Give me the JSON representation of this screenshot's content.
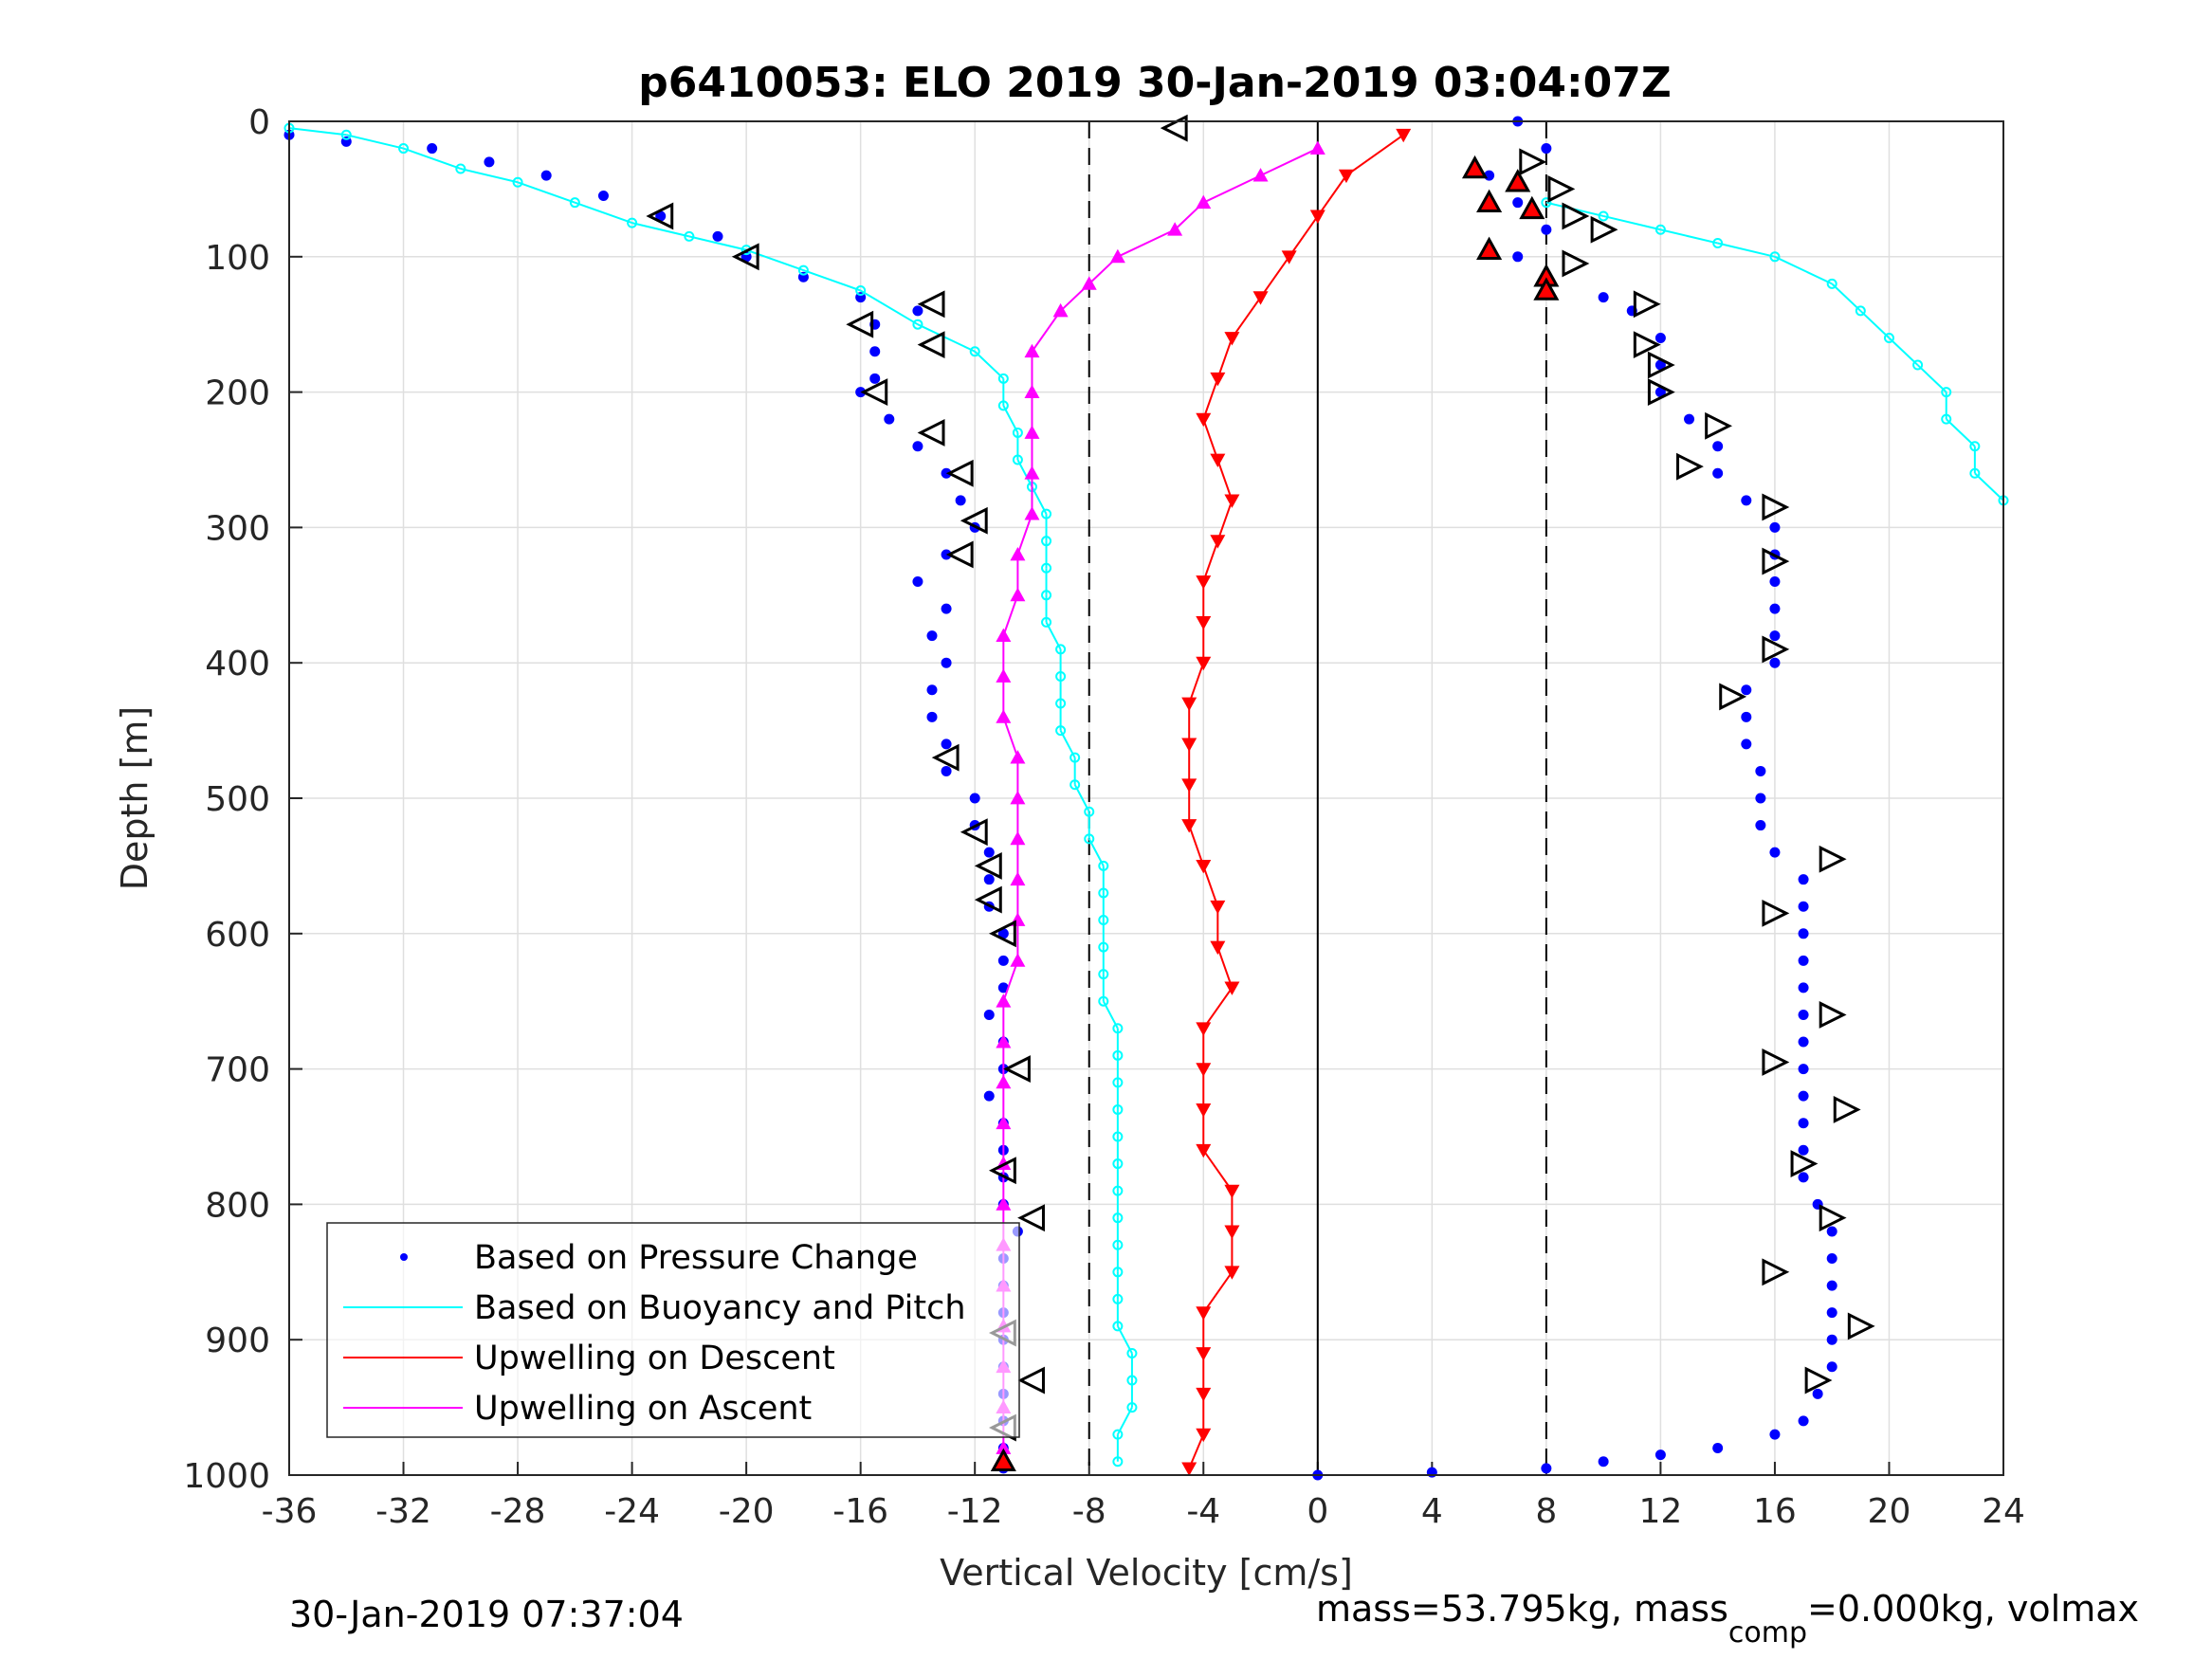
{
  "chart_data": {
    "type": "scatter",
    "title": "p6410053: ELO 2019 30-Jan-2019 03:04:07Z",
    "xlabel": "Vertical Velocity [cm/s]",
    "ylabel": "Depth [m]",
    "xlim": [
      -36,
      24
    ],
    "ylim": [
      0,
      1000
    ],
    "y_reversed": true,
    "grid": true,
    "xticks": [
      "-36",
      "-32",
      "-28",
      "-24",
      "-20",
      "-16",
      "-12",
      "-8",
      "-4",
      "0",
      "4",
      "8",
      "12",
      "16",
      "20",
      "24"
    ],
    "yticks": [
      "0",
      "100",
      "200",
      "300",
      "400",
      "500",
      "600",
      "700",
      "800",
      "900",
      "1000"
    ],
    "reference_lines": [
      {
        "x": -8,
        "style": "dashed"
      },
      {
        "x": 0,
        "style": "solid"
      },
      {
        "x": 8,
        "style": "dashed"
      }
    ],
    "legend_position": "lower-left",
    "series": [
      {
        "name": "Based on Pressure Change",
        "color": "#0000ff",
        "marker": "dot",
        "points": [
          [
            -36,
            10
          ],
          [
            -34,
            15
          ],
          [
            -31,
            20
          ],
          [
            -29,
            30
          ],
          [
            -27,
            40
          ],
          [
            -25,
            55
          ],
          [
            -23,
            70
          ],
          [
            -21,
            85
          ],
          [
            -20,
            100
          ],
          [
            -18,
            115
          ],
          [
            -16,
            130
          ],
          [
            -14,
            140
          ],
          [
            -15.5,
            150
          ],
          [
            -15.5,
            170
          ],
          [
            -15.5,
            190
          ],
          [
            -16,
            200
          ],
          [
            -15,
            220
          ],
          [
            -14,
            240
          ],
          [
            -13,
            260
          ],
          [
            -12.5,
            280
          ],
          [
            -12,
            300
          ],
          [
            -13,
            320
          ],
          [
            -14,
            340
          ],
          [
            -13,
            360
          ],
          [
            -13.5,
            380
          ],
          [
            -13,
            400
          ],
          [
            -13.5,
            420
          ],
          [
            -13.5,
            440
          ],
          [
            -13,
            460
          ],
          [
            -13,
            480
          ],
          [
            -12,
            500
          ],
          [
            -12,
            520
          ],
          [
            -11.5,
            540
          ],
          [
            -11.5,
            560
          ],
          [
            -11.5,
            580
          ],
          [
            -11,
            600
          ],
          [
            -11,
            620
          ],
          [
            -11,
            640
          ],
          [
            -11.5,
            660
          ],
          [
            -11,
            680
          ],
          [
            -11,
            700
          ],
          [
            -11.5,
            720
          ],
          [
            -11,
            740
          ],
          [
            -11,
            760
          ],
          [
            -11,
            780
          ],
          [
            -11,
            800
          ],
          [
            -10.5,
            820
          ],
          [
            -11,
            840
          ],
          [
            -11,
            860
          ],
          [
            -11,
            880
          ],
          [
            -11,
            900
          ],
          [
            -11,
            920
          ],
          [
            -11,
            940
          ],
          [
            -11,
            960
          ],
          [
            -11,
            980
          ],
          [
            -11,
            995
          ],
          [
            7,
            0
          ],
          [
            8,
            20
          ],
          [
            6,
            40
          ],
          [
            7,
            60
          ],
          [
            8,
            80
          ],
          [
            7,
            100
          ],
          [
            8,
            120
          ],
          [
            10,
            130
          ],
          [
            11,
            140
          ],
          [
            12,
            160
          ],
          [
            12,
            180
          ],
          [
            12,
            200
          ],
          [
            13,
            220
          ],
          [
            14,
            240
          ],
          [
            14,
            260
          ],
          [
            15,
            280
          ],
          [
            16,
            300
          ],
          [
            16,
            320
          ],
          [
            16,
            340
          ],
          [
            16,
            360
          ],
          [
            16,
            380
          ],
          [
            16,
            400
          ],
          [
            15,
            420
          ],
          [
            15,
            440
          ],
          [
            15,
            460
          ],
          [
            15.5,
            480
          ],
          [
            15.5,
            500
          ],
          [
            15.5,
            520
          ],
          [
            16,
            540
          ],
          [
            17,
            560
          ],
          [
            17,
            580
          ],
          [
            17,
            600
          ],
          [
            17,
            620
          ],
          [
            17,
            640
          ],
          [
            17,
            660
          ],
          [
            17,
            680
          ],
          [
            17,
            700
          ],
          [
            17,
            720
          ],
          [
            17,
            740
          ],
          [
            17,
            760
          ],
          [
            17,
            780
          ],
          [
            17.5,
            800
          ],
          [
            18,
            820
          ],
          [
            18,
            840
          ],
          [
            18,
            860
          ],
          [
            18,
            880
          ],
          [
            18,
            900
          ],
          [
            18,
            920
          ],
          [
            17.5,
            940
          ],
          [
            17,
            960
          ],
          [
            16,
            970
          ],
          [
            14,
            980
          ],
          [
            12,
            985
          ],
          [
            10,
            990
          ],
          [
            8,
            995
          ],
          [
            4,
            998
          ],
          [
            0,
            1000
          ]
        ]
      },
      {
        "name": "Based on Buoyancy and Pitch",
        "color": "#00ffff",
        "marker": "circle-line",
        "points": [
          [
            -36,
            5
          ],
          [
            -34,
            10
          ],
          [
            -32,
            20
          ],
          [
            -30,
            35
          ],
          [
            -28,
            45
          ],
          [
            -26,
            60
          ],
          [
            -24,
            75
          ],
          [
            -22,
            85
          ],
          [
            -20,
            95
          ],
          [
            -18,
            110
          ],
          [
            -16,
            125
          ],
          [
            -14,
            150
          ],
          [
            -12,
            170
          ],
          [
            -11,
            190
          ],
          [
            -11,
            210
          ],
          [
            -10.5,
            230
          ],
          [
            -10.5,
            250
          ],
          [
            -10,
            270
          ],
          [
            -9.5,
            290
          ],
          [
            -9.5,
            310
          ],
          [
            -9.5,
            330
          ],
          [
            -9.5,
            350
          ],
          [
            -9.5,
            370
          ],
          [
            -9,
            390
          ],
          [
            -9,
            410
          ],
          [
            -9,
            430
          ],
          [
            -9,
            450
          ],
          [
            -8.5,
            470
          ],
          [
            -8.5,
            490
          ],
          [
            -8,
            510
          ],
          [
            -8,
            530
          ],
          [
            -7.5,
            550
          ],
          [
            -7.5,
            570
          ],
          [
            -7.5,
            590
          ],
          [
            -7.5,
            610
          ],
          [
            -7.5,
            630
          ],
          [
            -7.5,
            650
          ],
          [
            -7,
            670
          ],
          [
            -7,
            690
          ],
          [
            -7,
            710
          ],
          [
            -7,
            730
          ],
          [
            -7,
            750
          ],
          [
            -7,
            770
          ],
          [
            -7,
            790
          ],
          [
            -7,
            810
          ],
          [
            -7,
            830
          ],
          [
            -7,
            850
          ],
          [
            -7,
            870
          ],
          [
            -7,
            890
          ],
          [
            -6.5,
            910
          ],
          [
            -6.5,
            930
          ],
          [
            -6.5,
            950
          ],
          [
            -7,
            970
          ],
          [
            -7,
            990
          ],
          [
            8,
            60
          ],
          [
            10,
            70
          ],
          [
            12,
            80
          ],
          [
            14,
            90
          ],
          [
            16,
            100
          ],
          [
            18,
            120
          ],
          [
            19,
            140
          ],
          [
            20,
            160
          ],
          [
            21,
            180
          ],
          [
            22,
            200
          ],
          [
            22,
            220
          ],
          [
            23,
            240
          ],
          [
            23,
            260
          ],
          [
            24,
            280
          ]
        ]
      },
      {
        "name": "Upwelling on Descent",
        "color": "#ff0000",
        "marker": "triangle-down",
        "points": [
          [
            3,
            10
          ],
          [
            1,
            40
          ],
          [
            0,
            70
          ],
          [
            -1,
            100
          ],
          [
            -2,
            130
          ],
          [
            -3,
            160
          ],
          [
            -3.5,
            190
          ],
          [
            -4,
            220
          ],
          [
            -3.5,
            250
          ],
          [
            -3,
            280
          ],
          [
            -3.5,
            310
          ],
          [
            -4,
            340
          ],
          [
            -4,
            370
          ],
          [
            -4,
            400
          ],
          [
            -4.5,
            430
          ],
          [
            -4.5,
            460
          ],
          [
            -4.5,
            490
          ],
          [
            -4.5,
            520
          ],
          [
            -4,
            550
          ],
          [
            -3.5,
            580
          ],
          [
            -3.5,
            610
          ],
          [
            -3,
            640
          ],
          [
            -4,
            670
          ],
          [
            -4,
            700
          ],
          [
            -4,
            730
          ],
          [
            -4,
            760
          ],
          [
            -3,
            790
          ],
          [
            -3,
            820
          ],
          [
            -3,
            850
          ],
          [
            -4,
            880
          ],
          [
            -4,
            910
          ],
          [
            -4,
            940
          ],
          [
            -4,
            970
          ],
          [
            -4.5,
            995
          ]
        ]
      },
      {
        "name": "Upwelling on Ascent",
        "color": "#ff00ff",
        "marker": "triangle-up",
        "points": [
          [
            0,
            20
          ],
          [
            -2,
            40
          ],
          [
            -4,
            60
          ],
          [
            -5,
            80
          ],
          [
            -7,
            100
          ],
          [
            -8,
            120
          ],
          [
            -9,
            140
          ],
          [
            -10,
            170
          ],
          [
            -10,
            200
          ],
          [
            -10,
            230
          ],
          [
            -10,
            260
          ],
          [
            -10,
            290
          ],
          [
            -10.5,
            320
          ],
          [
            -10.5,
            350
          ],
          [
            -11,
            380
          ],
          [
            -11,
            410
          ],
          [
            -11,
            440
          ],
          [
            -10.5,
            470
          ],
          [
            -10.5,
            500
          ],
          [
            -10.5,
            530
          ],
          [
            -10.5,
            560
          ],
          [
            -10.5,
            590
          ],
          [
            -10.5,
            620
          ],
          [
            -11,
            650
          ],
          [
            -11,
            680
          ],
          [
            -11,
            710
          ],
          [
            -11,
            740
          ],
          [
            -11,
            770
          ],
          [
            -11,
            800
          ],
          [
            -11,
            830
          ],
          [
            -11,
            860
          ],
          [
            -11,
            890
          ],
          [
            -11,
            920
          ],
          [
            -11,
            950
          ],
          [
            -11,
            980
          ]
        ]
      }
    ],
    "open_triangle_markers": [
      [
        -23,
        70
      ],
      [
        -20,
        100
      ],
      [
        -16,
        150
      ],
      [
        -13.5,
        135
      ],
      [
        -13.5,
        165
      ],
      [
        -15.5,
        200
      ],
      [
        -13.5,
        230
      ],
      [
        -12.5,
        260
      ],
      [
        -12,
        295
      ],
      [
        -12.5,
        320
      ],
      [
        -13,
        470
      ],
      [
        -12,
        525
      ],
      [
        -11.5,
        550
      ],
      [
        -11.5,
        575
      ],
      [
        -11,
        600
      ],
      [
        -10.5,
        700
      ],
      [
        -11,
        775
      ],
      [
        -10,
        810
      ],
      [
        -11,
        895
      ],
      [
        -10,
        930
      ],
      [
        -11,
        965
      ],
      [
        7.5,
        30
      ],
      [
        8.5,
        50
      ],
      [
        9,
        70
      ],
      [
        10,
        80
      ],
      [
        9,
        105
      ],
      [
        11.5,
        135
      ],
      [
        11.5,
        165
      ],
      [
        12,
        180
      ],
      [
        12,
        200
      ],
      [
        14,
        225
      ],
      [
        13,
        255
      ],
      [
        16,
        285
      ],
      [
        16,
        325
      ],
      [
        16,
        390
      ],
      [
        14.5,
        425
      ],
      [
        18,
        545
      ],
      [
        16,
        585
      ],
      [
        18,
        660
      ],
      [
        16,
        695
      ],
      [
        18.5,
        730
      ],
      [
        17,
        770
      ],
      [
        18,
        810
      ],
      [
        16,
        850
      ],
      [
        19,
        890
      ],
      [
        17.5,
        930
      ],
      [
        -5,
        5
      ]
    ],
    "filled_red_markers": [
      [
        5.5,
        35
      ],
      [
        6,
        60
      ],
      [
        7,
        45
      ],
      [
        7.5,
        65
      ],
      [
        6,
        95
      ],
      [
        8,
        115
      ],
      [
        8,
        125
      ],
      [
        -11,
        990
      ]
    ],
    "legend": [
      "Based on Pressure Change",
      "Based on Buoyancy and Pitch",
      "Upwelling on Descent",
      "Upwelling on Ascent"
    ]
  },
  "footer": {
    "left_timestamp": "30-Jan-2019 07:37:04",
    "right_text_prefix": "mass=53.795kg, mass",
    "right_text_sub": "comp",
    "right_text_suffix": "=0.000kg, volmax"
  }
}
